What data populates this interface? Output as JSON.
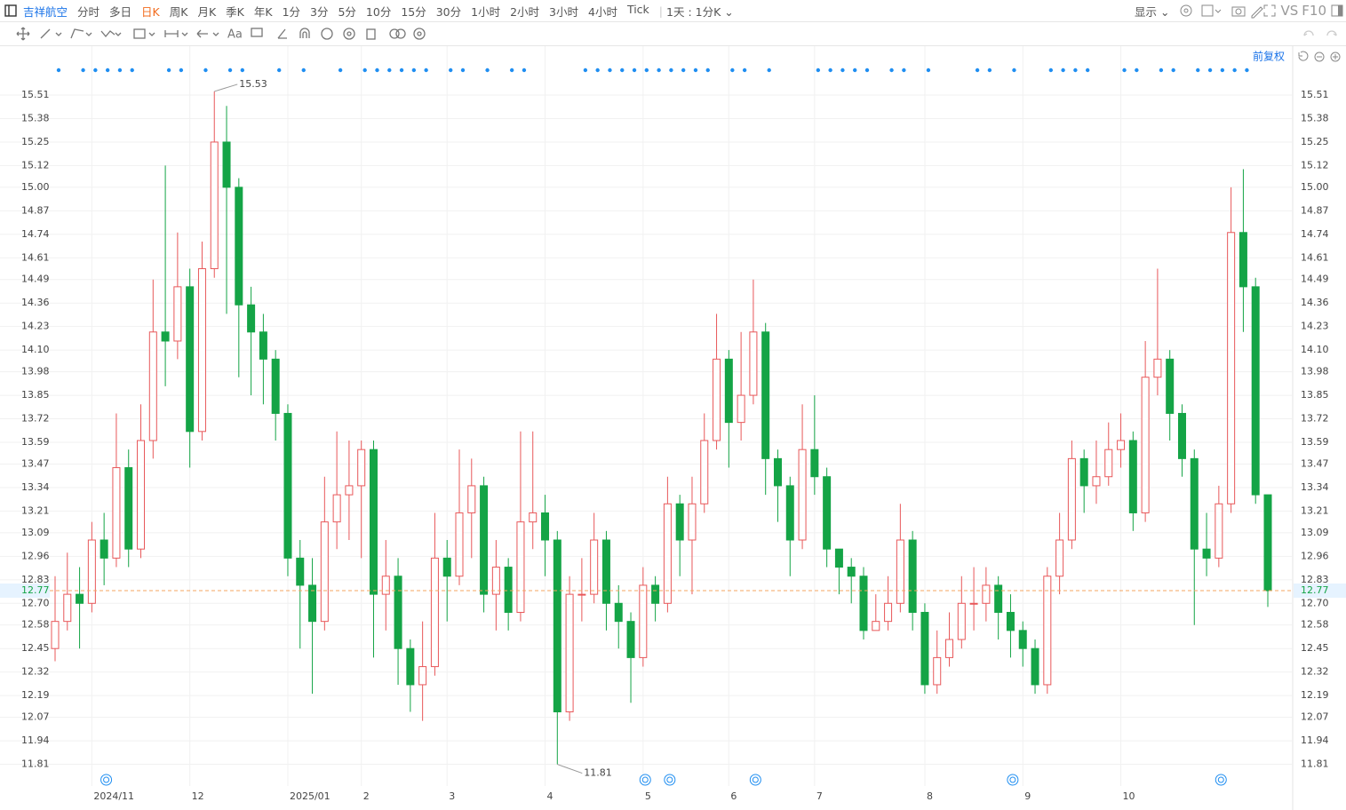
{
  "toolbar": {
    "symbol": "吉祥航空",
    "periods": [
      "分时",
      "多日",
      "日K",
      "周K",
      "月K",
      "季K",
      "年K",
      "1分",
      "3分",
      "5分",
      "10分",
      "15分",
      "30分",
      "1小时",
      "2小时",
      "3小时",
      "4小时",
      "Tick"
    ],
    "active": "日K",
    "range": "1天 : 1分K",
    "display": "显示",
    "vs": "VS",
    "f10": "F10"
  },
  "adjust": "前复权",
  "chart_data": {
    "type": "candlestick",
    "up_color": "#e8585a",
    "down_color": "#14a446",
    "grid": true,
    "categories": [
      null,
      null,
      null,
      "2024/11",
      null,
      null,
      null,
      null,
      null,
      null,
      null,
      "12",
      null,
      null,
      null,
      null,
      null,
      null,
      null,
      "2025/01",
      null,
      null,
      null,
      null,
      null,
      "2",
      null,
      null,
      null,
      null,
      null,
      null,
      "3",
      null,
      null,
      null,
      null,
      null,
      null,
      null,
      "4",
      null,
      null,
      null,
      null,
      null,
      null,
      null,
      "5",
      null,
      null,
      null,
      null,
      null,
      null,
      "6",
      null,
      null,
      null,
      null,
      null,
      null,
      "7",
      null,
      null,
      null,
      null,
      null,
      null,
      null,
      null,
      "8",
      null,
      null,
      null,
      null,
      null,
      null,
      null,
      "9",
      null,
      null,
      null,
      null,
      null,
      null,
      null,
      "10",
      null,
      null,
      null,
      null,
      null,
      null,
      null,
      null,
      null,
      null,
      null,
      null
    ],
    "open": [
      12.45,
      12.6,
      12.75,
      12.7,
      13.05,
      12.95,
      13.45,
      13.0,
      13.6,
      14.2,
      14.15,
      14.45,
      13.65,
      14.55,
      15.25,
      15.0,
      14.35,
      14.2,
      14.05,
      13.75,
      12.95,
      12.8,
      12.6,
      13.15,
      13.3,
      13.35,
      13.55,
      12.75,
      12.85,
      12.45,
      12.25,
      12.35,
      12.95,
      12.85,
      13.2,
      13.35,
      12.75,
      12.9,
      12.65,
      13.15,
      13.2,
      13.05,
      12.1,
      12.75,
      12.75,
      13.05,
      12.7,
      12.6,
      12.4,
      12.8,
      12.7,
      13.25,
      13.05,
      13.25,
      13.6,
      14.05,
      13.7,
      13.85,
      14.2,
      13.5,
      13.35,
      13.05,
      13.55,
      13.4,
      13.0,
      12.9,
      12.85,
      12.55,
      12.6,
      12.7,
      13.05,
      12.65,
      12.25,
      12.4,
      12.5,
      12.7,
      12.7,
      12.8,
      12.65,
      12.55,
      12.45,
      12.25,
      12.85,
      13.05,
      13.5,
      13.35,
      13.4,
      13.55,
      13.6,
      13.2,
      13.95,
      14.05,
      13.75,
      13.5,
      13.0,
      12.95,
      13.25,
      14.75,
      14.45,
      13.3
    ],
    "high": [
      12.85,
      12.98,
      12.9,
      13.15,
      13.2,
      13.75,
      13.55,
      13.8,
      14.49,
      15.12,
      14.75,
      14.55,
      14.7,
      15.53,
      15.45,
      15.05,
      14.45,
      14.3,
      14.1,
      13.8,
      13.05,
      12.95,
      13.4,
      13.65,
      13.6,
      13.6,
      13.6,
      13.05,
      12.95,
      12.5,
      12.6,
      13.2,
      13.05,
      13.55,
      13.5,
      13.4,
      13.05,
      12.95,
      13.65,
      13.65,
      13.3,
      13.1,
      12.85,
      12.95,
      13.2,
      13.1,
      12.8,
      12.65,
      12.9,
      12.85,
      13.4,
      13.3,
      13.4,
      13.75,
      14.3,
      14.1,
      14.2,
      14.49,
      14.25,
      13.55,
      13.4,
      13.8,
      13.85,
      13.45,
      13.0,
      12.95,
      12.9,
      12.75,
      12.85,
      13.25,
      13.1,
      12.7,
      12.55,
      12.65,
      12.85,
      12.9,
      12.9,
      12.85,
      12.75,
      12.6,
      12.5,
      12.9,
      13.2,
      13.6,
      13.55,
      13.6,
      13.7,
      13.75,
      13.65,
      14.15,
      14.55,
      14.1,
      13.8,
      13.55,
      13.2,
      13.35,
      15.0,
      15.1,
      14.5,
      13.3
    ],
    "low": [
      12.38,
      12.55,
      12.45,
      12.65,
      12.8,
      12.9,
      12.9,
      12.95,
      13.5,
      13.9,
      14.05,
      13.45,
      13.6,
      14.5,
      14.3,
      13.95,
      13.85,
      13.8,
      13.6,
      12.85,
      12.45,
      12.2,
      12.55,
      13.0,
      13.05,
      12.95,
      12.4,
      12.55,
      12.25,
      12.1,
      12.05,
      12.3,
      12.6,
      12.8,
      12.95,
      12.65,
      12.55,
      12.55,
      12.6,
      13.0,
      12.85,
      11.81,
      12.05,
      12.6,
      12.7,
      12.55,
      12.45,
      12.15,
      12.35,
      12.6,
      12.65,
      12.85,
      12.75,
      13.2,
      13.55,
      13.45,
      13.6,
      13.8,
      13.3,
      13.15,
      12.85,
      13.0,
      13.3,
      12.9,
      12.75,
      12.7,
      12.5,
      12.55,
      12.55,
      12.65,
      12.55,
      12.2,
      12.2,
      12.35,
      12.45,
      12.55,
      12.6,
      12.5,
      12.4,
      12.35,
      12.2,
      12.2,
      12.75,
      13.0,
      13.2,
      13.25,
      13.35,
      13.45,
      13.1,
      13.15,
      13.85,
      13.6,
      13.4,
      12.58,
      12.85,
      12.9,
      13.2,
      14.2,
      13.25,
      12.68
    ],
    "close": [
      12.6,
      12.75,
      12.7,
      13.05,
      12.95,
      13.45,
      13.0,
      13.6,
      14.2,
      14.15,
      14.45,
      13.65,
      14.55,
      15.25,
      15.0,
      14.35,
      14.2,
      14.05,
      13.75,
      12.95,
      12.8,
      12.6,
      13.15,
      13.3,
      13.35,
      13.55,
      12.75,
      12.85,
      12.45,
      12.25,
      12.35,
      12.95,
      12.85,
      13.2,
      13.35,
      12.75,
      12.9,
      12.65,
      13.15,
      13.2,
      13.05,
      12.1,
      12.75,
      12.75,
      13.05,
      12.7,
      12.6,
      12.4,
      12.8,
      12.7,
      13.25,
      13.05,
      13.25,
      13.6,
      14.05,
      13.7,
      13.85,
      14.2,
      13.5,
      13.35,
      13.05,
      13.55,
      13.4,
      13.0,
      12.9,
      12.85,
      12.55,
      12.6,
      12.7,
      13.05,
      12.65,
      12.25,
      12.4,
      12.5,
      12.7,
      12.7,
      12.8,
      12.65,
      12.55,
      12.45,
      12.25,
      12.85,
      13.05,
      13.5,
      13.35,
      13.4,
      13.55,
      13.6,
      13.2,
      13.95,
      14.05,
      13.75,
      13.5,
      13.0,
      12.95,
      13.25,
      14.75,
      14.45,
      13.3,
      12.77
    ],
    "ylim": [
      11.69,
      15.78
    ],
    "yticks": [
      15.51,
      15.38,
      15.25,
      15.12,
      {
        "value": 15,
        "label": "15.00"
      },
      14.87,
      14.74,
      14.61,
      14.49,
      14.36,
      14.23,
      {
        "value": 14.1,
        "label": "14.10"
      },
      13.98,
      13.85,
      13.72,
      13.59,
      13.47,
      13.34,
      13.21,
      13.09,
      12.96,
      12.83,
      {
        "value": 12.7,
        "label": "12.70"
      },
      12.58,
      12.45,
      12.32,
      12.19,
      12.07,
      11.94,
      11.81
    ]
  }
}
